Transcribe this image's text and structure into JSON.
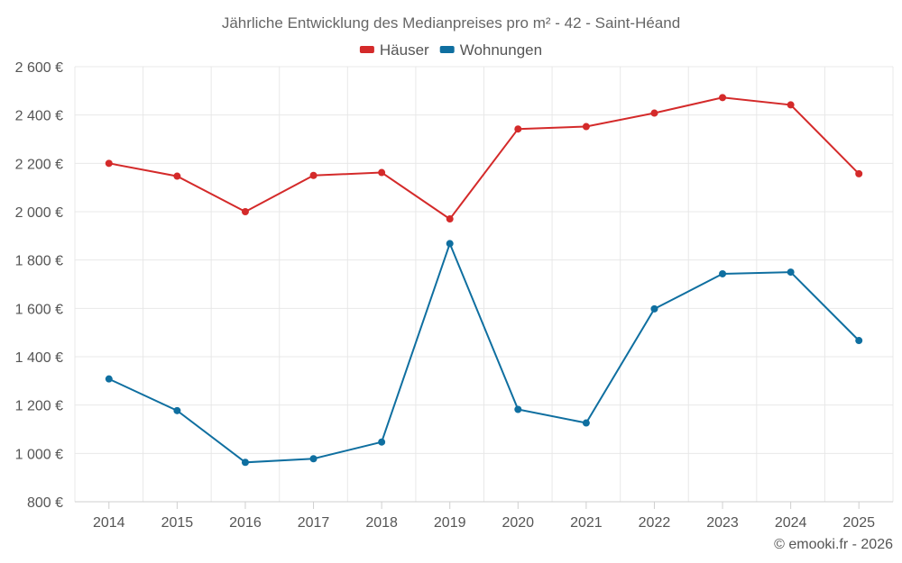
{
  "chart_data": {
    "type": "line",
    "title": "Jährliche Entwicklung des Medianpreises pro m² - 42 - Saint-Héand",
    "categories": [
      "2014",
      "2015",
      "2016",
      "2017",
      "2018",
      "2019",
      "2020",
      "2021",
      "2022",
      "2023",
      "2024",
      "2025"
    ],
    "series": [
      {
        "name": "Häuser",
        "color": "#d42a2a",
        "values": [
          2200,
          2147,
          2000,
          2150,
          2162,
          1970,
          2342,
          2352,
          2408,
          2472,
          2442,
          2157
        ]
      },
      {
        "name": "Wohnungen",
        "color": "#0f6fa0",
        "values": [
          1308,
          1177,
          963,
          978,
          1047,
          1868,
          1182,
          1126,
          1598,
          1743,
          1750,
          1467
        ]
      }
    ],
    "ylim": [
      800,
      2600
    ],
    "yticks": [
      800,
      1000,
      1200,
      1400,
      1600,
      1800,
      2000,
      2200,
      2400,
      2600
    ],
    "ytick_labels": [
      "800 €",
      "1 000 €",
      "1 200 €",
      "1 400 €",
      "1 600 €",
      "1 800 €",
      "2 000 €",
      "2 200 €",
      "2 400 €",
      "2 600 €"
    ],
    "grid": true,
    "legend_position": "top-center",
    "credit": "© emooki.fr - 2026"
  }
}
